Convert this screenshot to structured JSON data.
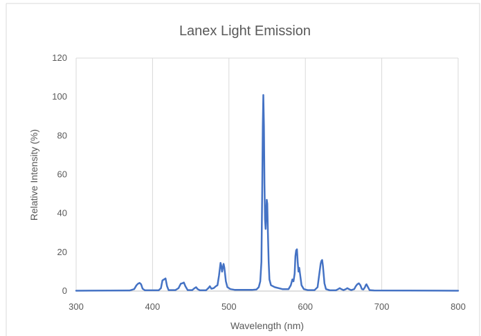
{
  "chart_data": {
    "type": "line",
    "title": "Lanex Light Emission",
    "xlabel": "Wavelength (nm)",
    "ylabel": "Relative Intensity (%)",
    "xlim": [
      300,
      800
    ],
    "ylim": [
      0,
      120
    ],
    "xticks": [
      300,
      400,
      500,
      600,
      700,
      800
    ],
    "yticks": [
      0,
      20,
      40,
      60,
      80,
      100,
      120
    ],
    "grid": "vertical",
    "legend": "none",
    "series": [
      {
        "color": "#4472C4",
        "points": [
          [
            300,
            0.2
          ],
          [
            370,
            0.3
          ],
          [
            376,
            1.0
          ],
          [
            379,
            3.0
          ],
          [
            381,
            3.8
          ],
          [
            383,
            4.2
          ],
          [
            385,
            3.5
          ],
          [
            387,
            1.2
          ],
          [
            390,
            0.4
          ],
          [
            408,
            0.4
          ],
          [
            411,
            1.5
          ],
          [
            413,
            5.5
          ],
          [
            415,
            6.0
          ],
          [
            417,
            6.5
          ],
          [
            419,
            2.5
          ],
          [
            421,
            0.5
          ],
          [
            430,
            0.5
          ],
          [
            434,
            1.5
          ],
          [
            437,
            3.8
          ],
          [
            439,
            4.0
          ],
          [
            441,
            4.4
          ],
          [
            443,
            2.5
          ],
          [
            446,
            0.5
          ],
          [
            452,
            0.5
          ],
          [
            455,
            1.5
          ],
          [
            457,
            2.0
          ],
          [
            459,
            1.0
          ],
          [
            462,
            0.4
          ],
          [
            470,
            0.4
          ],
          [
            473,
            1.5
          ],
          [
            475,
            2.5
          ],
          [
            477,
            1.2
          ],
          [
            480,
            1.5
          ],
          [
            483,
            2.5
          ],
          [
            485,
            3.0
          ],
          [
            487,
            8.0
          ],
          [
            489,
            14.5
          ],
          [
            490,
            13.0
          ],
          [
            491,
            10.0
          ],
          [
            492,
            12.0
          ],
          [
            493,
            14.0
          ],
          [
            494,
            12.0
          ],
          [
            496,
            5.0
          ],
          [
            498,
            2.0
          ],
          [
            502,
            1.0
          ],
          [
            508,
            0.6
          ],
          [
            530,
            0.6
          ],
          [
            536,
            0.8
          ],
          [
            539,
            2.0
          ],
          [
            541,
            5.0
          ],
          [
            542.5,
            15.0
          ],
          [
            543.5,
            50.0
          ],
          [
            544.3,
            85.0
          ],
          [
            545,
            101.0
          ],
          [
            545.8,
            85.0
          ],
          [
            546.5,
            55.0
          ],
          [
            547.2,
            37.0
          ],
          [
            548,
            32.0
          ],
          [
            548.8,
            40.0
          ],
          [
            549.5,
            47.0
          ],
          [
            550.2,
            45.0
          ],
          [
            551,
            30.0
          ],
          [
            552,
            15.0
          ],
          [
            553,
            6.0
          ],
          [
            555,
            3.0
          ],
          [
            560,
            2.0
          ],
          [
            570,
            1.0
          ],
          [
            578,
            1.0
          ],
          [
            581,
            3.0
          ],
          [
            583,
            6.0
          ],
          [
            584.5,
            5.0
          ],
          [
            586,
            9.0
          ],
          [
            587,
            18.0
          ],
          [
            588,
            21.0
          ],
          [
            589,
            21.5
          ],
          [
            590,
            15.0
          ],
          [
            591,
            10.0
          ],
          [
            592,
            12.0
          ],
          [
            593,
            9.0
          ],
          [
            595,
            3.0
          ],
          [
            598,
            1.0
          ],
          [
            603,
            0.5
          ],
          [
            612,
            0.5
          ],
          [
            616,
            2.0
          ],
          [
            618,
            8.0
          ],
          [
            620,
            14.0
          ],
          [
            621,
            15.5
          ],
          [
            622,
            16.0
          ],
          [
            623,
            13.0
          ],
          [
            625,
            4.0
          ],
          [
            627,
            1.0
          ],
          [
            632,
            0.4
          ],
          [
            640,
            0.4
          ],
          [
            643,
            1.0
          ],
          [
            645,
            1.5
          ],
          [
            647,
            1.0
          ],
          [
            650,
            0.5
          ],
          [
            653,
            1.0
          ],
          [
            655,
            1.5
          ],
          [
            657,
            1.0
          ],
          [
            660,
            0.5
          ],
          [
            664,
            1.0
          ],
          [
            666,
            2.5
          ],
          [
            668,
            3.5
          ],
          [
            670,
            4.0
          ],
          [
            672,
            3.0
          ],
          [
            674,
            1.0
          ],
          [
            676,
            0.8
          ],
          [
            678,
            2.0
          ],
          [
            679,
            3.0
          ],
          [
            680,
            3.5
          ],
          [
            682,
            2.0
          ],
          [
            684,
            0.5
          ],
          [
            690,
            0.3
          ],
          [
            800,
            0.2
          ]
        ]
      }
    ]
  }
}
